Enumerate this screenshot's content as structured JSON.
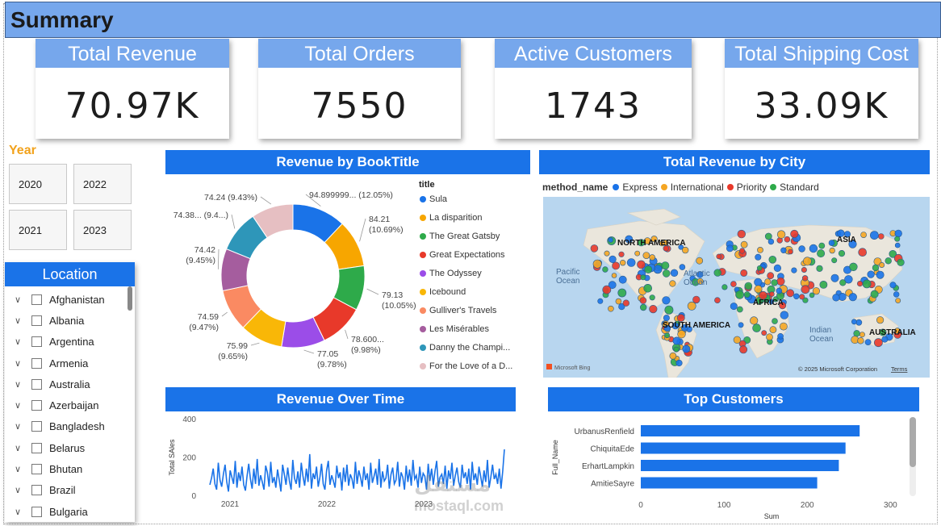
{
  "header": {
    "title": "Summary"
  },
  "kpis": [
    {
      "label": "Total Revenue",
      "value": "70.97K"
    },
    {
      "label": "Total Orders",
      "value": "7550"
    },
    {
      "label": "Active Customers",
      "value": "1743"
    },
    {
      "label": "Total Shipping Cost",
      "value": "33.09K"
    }
  ],
  "year_filter": {
    "label": "Year",
    "options": [
      "2020",
      "2022",
      "2021",
      "2023"
    ]
  },
  "location": {
    "title": "Location",
    "items": [
      "Afghanistan",
      "Albania",
      "Argentina",
      "Armenia",
      "Australia",
      "Azerbaijan",
      "Bangladesh",
      "Belarus",
      "Bhutan",
      "Brazil",
      "Bulgaria"
    ]
  },
  "revenue_by_book": {
    "title": "Revenue by BookTitle",
    "legend_title": "title",
    "slice_labels": [
      "94.899999... (12.05%)",
      "84.21 (10.69%)",
      "79.13 (10.05%)",
      "78.600... (9.98%)",
      "77.05 (9.78%)",
      "75.99 (9.65%)",
      "74.59 (9.47%)",
      "74.42 (9.45%)",
      "74.38... (9.4...)",
      "74.24 (9.43%)"
    ]
  },
  "city_map": {
    "title": "Total Revenue by City",
    "legend_title": "method_name",
    "legend": [
      {
        "name": "Express",
        "color": "#1a73e8"
      },
      {
        "name": "International",
        "color": "#f5a623"
      },
      {
        "name": "Priority",
        "color": "#e8392a"
      },
      {
        "name": "Standard",
        "color": "#2eaa4a"
      }
    ],
    "labels": [
      "NORTH AMERICA",
      "ASIA",
      "Pacific Ocean",
      "Atlantic Ocean",
      "AFRICA",
      "SOUTH AMERICA",
      "Indian Ocean",
      "AUSTRALIA"
    ],
    "bing": "Microsoft Bing",
    "copyright": "© 2025 Microsoft Corporation",
    "terms": "Terms"
  },
  "revenue_over_time": {
    "title": "Revenue Over Time",
    "ylabel": "Total SAles",
    "yticks": [
      "400",
      "200",
      "0"
    ],
    "xticks": [
      "2021",
      "2022",
      "2023"
    ]
  },
  "top_customers": {
    "title": "Top Customers",
    "ylabel": "Full_Name",
    "xlabel": "Sum",
    "xticks": [
      "0",
      "100",
      "200",
      "300"
    ]
  },
  "watermark": {
    "line1": "مستقل",
    "line2": "mostaql.com"
  },
  "chart_data": [
    {
      "type": "pie",
      "title": "Revenue by BookTitle",
      "categories": [
        "Sula",
        "La disparition",
        "The Great Gatsby",
        "Great Expectations",
        "The Odyssey",
        "Icebound",
        "Gulliver's Travels",
        "Les Misérables",
        "Danny the Champi...",
        "For the Love of a D..."
      ],
      "values": [
        94.9,
        84.21,
        79.13,
        78.6,
        77.05,
        75.99,
        74.59,
        74.42,
        74.38,
        74.24
      ],
      "colors": [
        "#1a73e8",
        "#f7a600",
        "#2eaa4a",
        "#e8392a",
        "#9b4de8",
        "#f9b707",
        "#fa8a62",
        "#a55d9e",
        "#2e96b9",
        "#e6bfc2"
      ]
    },
    {
      "type": "line",
      "title": "Revenue Over Time",
      "ylabel": "Total SAles",
      "ylim": [
        0,
        400
      ],
      "x_range": [
        "2020-10",
        "2023-10"
      ],
      "note_values_estimated": false,
      "values": [
        55,
        90,
        140,
        60,
        30,
        170,
        80,
        45,
        110,
        160,
        70,
        20,
        130,
        95,
        60,
        180,
        40,
        120,
        75,
        150,
        55,
        25,
        100,
        165,
        85,
        35,
        140,
        60,
        190,
        50,
        105,
        70,
        30,
        155,
        120,
        45,
        175,
        65,
        95,
        40,
        135,
        80,
        20,
        160,
        110,
        55,
        145,
        75,
        30,
        185,
        90,
        60,
        125,
        40,
        170,
        100,
        50,
        140,
        70,
        215,
        35,
        115,
        85,
        150,
        45,
        95,
        165,
        60,
        30,
        130,
        180,
        55,
        105,
        75,
        40,
        155,
        90,
        120,
        25,
        145,
        70,
        160,
        50,
        110,
        85,
        35,
        175,
        60,
        130,
        95,
        45,
        150,
        80,
        115,
        30,
        170,
        65,
        100,
        140,
        55,
        190,
        40,
        125,
        75,
        90,
        160,
        35,
        110,
        145,
        60,
        80,
        175,
        45,
        120,
        95,
        30,
        155,
        70,
        135,
        50,
        185,
        85,
        105,
        40,
        150,
        65,
        115,
        100,
        30,
        165,
        75,
        140,
        55,
        125,
        180,
        45,
        95,
        110,
        60,
        155,
        35,
        130,
        85,
        170,
        50,
        105,
        145,
        70,
        40,
        160,
        90,
        120,
        60,
        140,
        30,
        175,
        80,
        115,
        55,
        150,
        100,
        45,
        130,
        70,
        185,
        40,
        95,
        160,
        85,
        110,
        60,
        140,
        35,
        125,
        240
      ]
    },
    {
      "type": "bar",
      "orientation": "horizontal",
      "title": "Top Customers",
      "categories": [
        "UrbanusRenfield",
        "ChiquitaEde",
        "ErhartLampkin",
        "AmitieSayre"
      ],
      "values": [
        263,
        246,
        238,
        212
      ],
      "xlim": [
        0,
        320
      ],
      "xlabel": "Sum",
      "ylabel": "Full_Name"
    }
  ]
}
